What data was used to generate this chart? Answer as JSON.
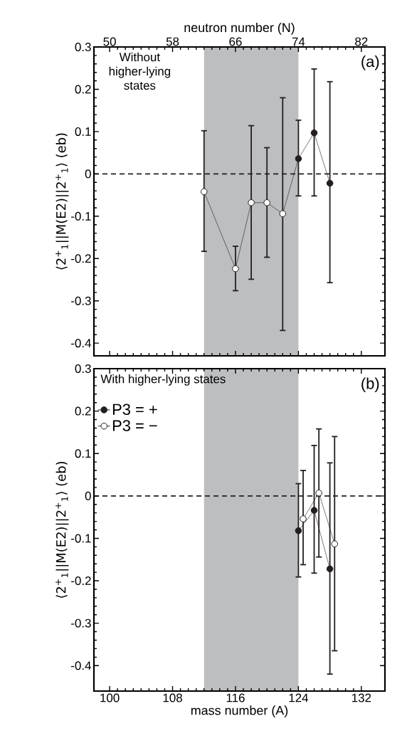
{
  "chart_data": [
    {
      "type": "line",
      "ylabel": "⟨2$^{+}$$_{1}$||M(E2)||2$^{+}$$_{1}$⟩ (eb)",
      "x2label": "neutron number (N)",
      "xlim": [
        98,
        135
      ],
      "xticks": [
        100,
        108,
        116,
        124,
        132
      ],
      "x2lim": [
        48,
        85
      ],
      "x2ticks": [
        50,
        58,
        66,
        74,
        82
      ],
      "ylim": [
        -0.43,
        0.3
      ],
      "yticks": [
        -0.4,
        -0.3,
        -0.2,
        -0.1,
        0,
        0.1,
        0.2,
        0.3
      ],
      "tick_labels": "y",
      "marker": "circle",
      "series": [
        {
          "color": "#231f20",
          "x": [
            112,
            116,
            118,
            120,
            122,
            124,
            126,
            128
          ],
          "values": [
            -0.042,
            -0.224,
            -0.068,
            -0.068,
            -0.094,
            0.036,
            0.097,
            -0.022
          ],
          "colors": [
            "#ffffff",
            "#ffffff",
            "#ffffff",
            "#ffffff",
            "#ffffff",
            "#231f20",
            "#231f20",
            "#231f20"
          ],
          "errors": [
            [
              -0.183,
              0.102
            ],
            [
              -0.276,
              -0.171
            ],
            [
              -0.249,
              0.114
            ],
            [
              -0.197,
              0.062
            ],
            [
              -0.37,
              0.18
            ],
            [
              -0.052,
              0.127
            ],
            [
              -0.052,
              0.248
            ],
            [
              -0.257,
              0.218
            ]
          ]
        }
      ],
      "ref_lines": [
        {
          "axis": "y",
          "value": 0,
          "line_style": "dashed",
          "color": "#231f20"
        }
      ],
      "bands": [
        {
          "axis": "x",
          "from": 112,
          "to": 124,
          "color": "#bcbec0"
        }
      ],
      "annotations": [
        "Without higher-lying states",
        "(a)"
      ]
    },
    {
      "type": "line",
      "ylabel": "⟨2$^{+}$$_{1}$||M(E2)||2$^{+}$$_{1}$⟩ (eb)",
      "xlabel": "mass number (A)",
      "xlim": [
        98,
        135
      ],
      "xticks": [
        100,
        108,
        116,
        124,
        132
      ],
      "ylim": [
        -0.46,
        0.3
      ],
      "yticks": [
        -0.4,
        -0.3,
        -0.2,
        -0.1,
        0,
        0.1,
        0.2,
        0.3
      ],
      "marker": "circle",
      "legend": "top left",
      "series": [
        {
          "name": "P3 = +",
          "color": "#231f20",
          "x": [
            124,
            126,
            128
          ],
          "values": [
            -0.082,
            -0.034,
            -0.172
          ],
          "colors": [
            "#231f20",
            "#231f20",
            "#231f20"
          ],
          "errors": [
            [
              -0.191,
              0.029
            ],
            [
              -0.182,
              0.119
            ],
            [
              -0.42,
              0.078
            ]
          ]
        },
        {
          "name": "P3 = −",
          "color": "#231f20",
          "x": [
            124.6,
            126.6,
            128.6
          ],
          "values": [
            -0.054,
            0.007,
            -0.113
          ],
          "colors": [
            "#ffffff",
            "#ffffff",
            "#ffffff"
          ],
          "errors": [
            [
              -0.162,
              0.06
            ],
            [
              -0.144,
              0.158
            ],
            [
              -0.365,
              0.14
            ]
          ]
        }
      ],
      "ref_lines": [
        {
          "axis": "y",
          "value": 0,
          "line_style": "dashed",
          "color": "#231f20"
        }
      ],
      "bands": [
        {
          "axis": "x",
          "from": 112,
          "to": 124,
          "color": "#bcbec0"
        }
      ],
      "annotations": [
        "With higher-lying states",
        "(b)"
      ]
    }
  ]
}
